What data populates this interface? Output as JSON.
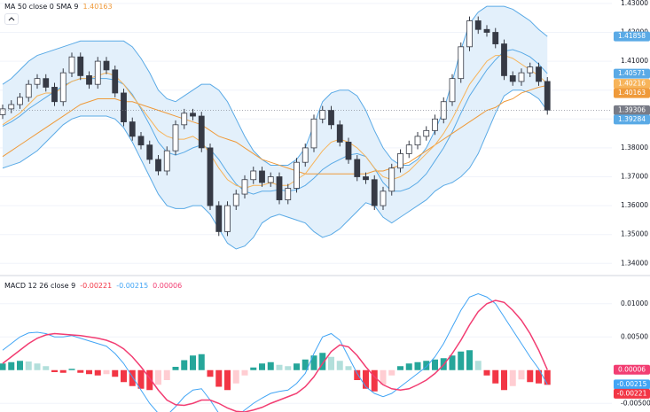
{
  "chart_data": [
    {
      "type": "candlestick",
      "open": [
        1.3915,
        1.3935,
        1.395,
        1.3975,
        1.402,
        1.404,
        1.401,
        1.396,
        1.406,
        1.4115,
        1.405,
        1.402,
        1.41,
        1.407,
        1.399,
        1.389,
        1.384,
        1.381,
        1.376,
        1.372,
        1.379,
        1.388,
        1.392,
        1.391,
        1.38,
        1.36,
        1.351,
        1.36,
        1.364,
        1.369,
        1.372,
        1.368,
        1.37,
        1.362,
        1.366,
        1.375,
        1.38,
        1.39,
        1.393,
        1.388,
        1.382,
        1.376,
        1.37,
        1.369,
        1.36,
        1.365,
        1.373,
        1.378,
        1.381,
        1.384,
        1.386,
        1.39,
        1.396,
        1.404,
        1.415,
        1.424,
        1.421,
        1.42,
        1.416,
        1.405,
        1.403,
        1.406,
        1.408,
        1.403
      ],
      "high": [
        1.395,
        1.3965,
        1.399,
        1.4035,
        1.4055,
        1.4055,
        1.4025,
        1.4075,
        1.413,
        1.413,
        1.4065,
        1.4115,
        1.4115,
        1.4085,
        1.4005,
        1.3905,
        1.3855,
        1.3825,
        1.3775,
        1.3805,
        1.3895,
        1.3935,
        1.3935,
        1.3925,
        1.3815,
        1.3615,
        1.3615,
        1.3655,
        1.3705,
        1.3735,
        1.3735,
        1.3715,
        1.3715,
        1.3675,
        1.3765,
        1.3815,
        1.3915,
        1.3945,
        1.3945,
        1.3895,
        1.3835,
        1.3775,
        1.3715,
        1.3705,
        1.3665,
        1.3745,
        1.3795,
        1.3825,
        1.3855,
        1.3875,
        1.3915,
        1.3975,
        1.4055,
        1.4165,
        1.4255,
        1.4255,
        1.4225,
        1.4215,
        1.4175,
        1.4065,
        1.4075,
        1.4095,
        1.4095,
        1.4045
      ],
      "low": [
        1.39,
        1.392,
        1.3935,
        1.396,
        1.4005,
        1.3995,
        1.3945,
        1.3945,
        1.4045,
        1.4035,
        1.4005,
        1.4005,
        1.4055,
        1.3975,
        1.3875,
        1.3825,
        1.3795,
        1.3745,
        1.3705,
        1.3705,
        1.3775,
        1.3865,
        1.3895,
        1.3785,
        1.3585,
        1.3495,
        1.3495,
        1.3585,
        1.3625,
        1.3675,
        1.3665,
        1.3665,
        1.3605,
        1.3605,
        1.3645,
        1.3735,
        1.3785,
        1.3885,
        1.3865,
        1.3805,
        1.3745,
        1.3685,
        1.3675,
        1.3585,
        1.3585,
        1.3635,
        1.3715,
        1.3765,
        1.3795,
        1.3825,
        1.3845,
        1.3885,
        1.3945,
        1.4025,
        1.4135,
        1.4195,
        1.4185,
        1.4145,
        1.4035,
        1.4015,
        1.4015,
        1.4045,
        1.4015,
        1.3915
      ],
      "close": [
        1.3935,
        1.395,
        1.3975,
        1.402,
        1.404,
        1.401,
        1.396,
        1.406,
        1.4115,
        1.405,
        1.402,
        1.41,
        1.407,
        1.399,
        1.389,
        1.384,
        1.381,
        1.376,
        1.372,
        1.379,
        1.388,
        1.392,
        1.391,
        1.38,
        1.36,
        1.351,
        1.36,
        1.364,
        1.369,
        1.372,
        1.368,
        1.37,
        1.362,
        1.366,
        1.375,
        1.38,
        1.39,
        1.393,
        1.388,
        1.382,
        1.376,
        1.37,
        1.369,
        1.36,
        1.365,
        1.373,
        1.378,
        1.381,
        1.384,
        1.386,
        1.39,
        1.396,
        1.404,
        1.415,
        1.424,
        1.421,
        1.42,
        1.416,
        1.405,
        1.403,
        1.406,
        1.408,
        1.403,
        1.39306
      ],
      "candle_colors": {
        "up": "#ffffff",
        "down": "#363a45",
        "border": "#363a45",
        "last": "#787b86"
      },
      "bands": {
        "color": "#5aaae6",
        "fill": "#e3f0fb",
        "upper": [
          1.402,
          1.404,
          1.407,
          1.41,
          1.412,
          1.413,
          1.414,
          1.415,
          1.416,
          1.417,
          1.417,
          1.417,
          1.417,
          1.417,
          1.417,
          1.415,
          1.411,
          1.406,
          1.4,
          1.397,
          1.396,
          1.398,
          1.4,
          1.402,
          1.402,
          1.4,
          1.396,
          1.39,
          1.384,
          1.379,
          1.376,
          1.374,
          1.374,
          1.374,
          1.376,
          1.38,
          1.388,
          1.396,
          1.399,
          1.4,
          1.4,
          1.398,
          1.393,
          1.386,
          1.38,
          1.376,
          1.374,
          1.374,
          1.376,
          1.38,
          1.386,
          1.393,
          1.403,
          1.414,
          1.423,
          1.427,
          1.429,
          1.429,
          1.429,
          1.428,
          1.426,
          1.424,
          1.421,
          1.41858
        ],
        "basis": [
          1.3875,
          1.389,
          1.391,
          1.3935,
          1.3955,
          1.3975,
          1.3995,
          1.4015,
          1.403,
          1.404,
          1.404,
          1.404,
          1.404,
          1.4035,
          1.402,
          1.3985,
          1.3935,
          1.388,
          1.382,
          1.3785,
          1.3775,
          1.3785,
          1.38,
          1.381,
          1.3795,
          1.376,
          1.3715,
          1.3675,
          1.365,
          1.364,
          1.365,
          1.365,
          1.3655,
          1.365,
          1.3655,
          1.367,
          1.3695,
          1.3725,
          1.3745,
          1.376,
          1.3775,
          1.378,
          1.377,
          1.373,
          1.368,
          1.365,
          1.365,
          1.366,
          1.368,
          1.371,
          1.3755,
          1.38,
          1.3855,
          1.392,
          1.398,
          1.4025,
          1.407,
          1.4105,
          1.4135,
          1.414,
          1.413,
          1.4115,
          1.409,
          1.40571
        ],
        "lower": [
          1.373,
          1.374,
          1.375,
          1.377,
          1.379,
          1.382,
          1.385,
          1.388,
          1.39,
          1.391,
          1.391,
          1.391,
          1.391,
          1.39,
          1.387,
          1.382,
          1.376,
          1.37,
          1.364,
          1.36,
          1.359,
          1.359,
          1.36,
          1.36,
          1.357,
          1.352,
          1.347,
          1.345,
          1.346,
          1.349,
          1.354,
          1.356,
          1.357,
          1.356,
          1.355,
          1.354,
          1.351,
          1.349,
          1.35,
          1.352,
          1.355,
          1.358,
          1.361,
          1.36,
          1.356,
          1.354,
          1.356,
          1.358,
          1.36,
          1.362,
          1.365,
          1.367,
          1.368,
          1.37,
          1.373,
          1.378,
          1.385,
          1.392,
          1.398,
          1.4,
          1.4,
          1.399,
          1.397,
          1.39284
        ]
      },
      "lines": [
        {
          "name": "MA 50 close 0 SMA 9",
          "color": "#ef9a3a",
          "values": [
            1.377,
            1.379,
            1.381,
            1.383,
            1.385,
            1.387,
            1.389,
            1.391,
            1.393,
            1.395,
            1.396,
            1.397,
            1.397,
            1.397,
            1.396,
            1.396,
            1.395,
            1.394,
            1.393,
            1.392,
            1.391,
            1.39,
            1.389,
            1.388,
            1.386,
            1.384,
            1.383,
            1.382,
            1.38,
            1.378,
            1.376,
            1.375,
            1.374,
            1.373,
            1.372,
            1.371,
            1.371,
            1.371,
            1.371,
            1.371,
            1.371,
            1.371,
            1.371,
            1.372,
            1.372,
            1.373,
            1.374,
            1.375,
            1.377,
            1.379,
            1.381,
            1.383,
            1.385,
            1.387,
            1.389,
            1.391,
            1.393,
            1.394,
            1.396,
            1.397,
            1.399,
            1.4,
            1.401,
            1.40163
          ]
        },
        {
          "color": "#f7b45a",
          "values": [
            1.388,
            1.39,
            1.392,
            1.395,
            1.398,
            1.399,
            1.399,
            1.401,
            1.403,
            1.404,
            1.404,
            1.405,
            1.406,
            1.405,
            1.402,
            1.398,
            1.394,
            1.39,
            1.386,
            1.384,
            1.383,
            1.383,
            1.384,
            1.382,
            1.378,
            1.373,
            1.369,
            1.367,
            1.366,
            1.367,
            1.367,
            1.368,
            1.367,
            1.367,
            1.369,
            1.371,
            1.375,
            1.379,
            1.382,
            1.383,
            1.382,
            1.38,
            1.377,
            1.373,
            1.37,
            1.369,
            1.37,
            1.372,
            1.375,
            1.378,
            1.381,
            1.385,
            1.39,
            1.396,
            1.402,
            1.406,
            1.41,
            1.412,
            1.412,
            1.411,
            1.409,
            1.407,
            1.405,
            1.40216
          ]
        }
      ],
      "ylim": [
        1.3361,
        1.4312
      ],
      "yticks": [
        {
          "value": 1.43,
          "label": "1.43000"
        },
        {
          "value": 1.42,
          "label": "1.42000"
        },
        {
          "value": 1.41,
          "label": "1.41000"
        },
        {
          "value": 1.4,
          "label": "1.40000"
        },
        {
          "value": 1.39,
          "label": "1.39000"
        },
        {
          "value": 1.38,
          "label": "1.38000"
        },
        {
          "value": 1.37,
          "label": "1.37000"
        },
        {
          "value": 1.36,
          "label": "1.36000"
        },
        {
          "value": 1.35,
          "label": "1.35000"
        },
        {
          "value": 1.34,
          "label": "1.34000"
        }
      ],
      "grid": true
    },
    {
      "type": "macd",
      "title": "MACD 12 26 close 9",
      "histogram": [
        0.001,
        0.0012,
        0.0014,
        0.0013,
        0.001,
        0.0006,
        -0.0003,
        -0.0004,
        0.0002,
        -0.0004,
        -0.0006,
        -0.0008,
        -0.0006,
        -0.001,
        -0.0018,
        -0.0024,
        -0.0028,
        -0.003,
        -0.0022,
        -0.0015,
        0.0005,
        0.0015,
        0.0022,
        0.0024,
        -0.001,
        -0.0025,
        -0.003,
        -0.002,
        -0.0008,
        0.0004,
        0.001,
        0.0012,
        0.0008,
        0.0006,
        0.001,
        0.0016,
        0.0022,
        0.0026,
        0.002,
        0.0014,
        0.0006,
        -0.0015,
        -0.0028,
        -0.0032,
        -0.0022,
        -0.0008,
        0.0006,
        0.001,
        0.0012,
        0.0014,
        0.0016,
        0.0018,
        0.0022,
        0.0028,
        0.003,
        0.0014,
        -0.0008,
        -0.002,
        -0.003,
        -0.0024,
        -0.0014,
        -0.0018,
        -0.002,
        -0.00221
      ],
      "macd": [
        0.003,
        0.004,
        0.005,
        0.0056,
        0.0057,
        0.0055,
        0.005,
        0.005,
        0.0052,
        0.0048,
        0.0044,
        0.004,
        0.0036,
        0.0025,
        0.001,
        -0.001,
        -0.003,
        -0.005,
        -0.0065,
        -0.0068,
        -0.0055,
        -0.004,
        -0.003,
        -0.0028,
        -0.0045,
        -0.0065,
        -0.0072,
        -0.007,
        -0.006,
        -0.005,
        -0.0042,
        -0.0035,
        -0.0032,
        -0.003,
        -0.002,
        -0.0005,
        0.0025,
        0.005,
        0.0055,
        0.0045,
        0.002,
        -0.0005,
        -0.0025,
        -0.0035,
        -0.004,
        -0.0035,
        -0.0025,
        -0.0015,
        -0.0005,
        0.0005,
        0.002,
        0.004,
        0.0065,
        0.009,
        0.011,
        0.0115,
        0.011,
        0.01,
        0.008,
        0.006,
        0.004,
        0.002,
        0.0002,
        -0.00215
      ],
      "signal": [
        0.001,
        0.002,
        0.003,
        0.004,
        0.0048,
        0.0053,
        0.0055,
        0.0054,
        0.0053,
        0.0052,
        0.005,
        0.0048,
        0.0045,
        0.004,
        0.0032,
        0.002,
        0.0005,
        -0.0012,
        -0.003,
        -0.0045,
        -0.0052,
        -0.0053,
        -0.005,
        -0.0045,
        -0.0045,
        -0.005,
        -0.0057,
        -0.0062,
        -0.0063,
        -0.006,
        -0.0056,
        -0.005,
        -0.0045,
        -0.004,
        -0.0035,
        -0.0025,
        -0.001,
        0.001,
        0.0028,
        0.0038,
        0.0035,
        0.0022,
        0.0005,
        -0.001,
        -0.0022,
        -0.0028,
        -0.003,
        -0.0028,
        -0.0022,
        -0.0015,
        -0.0005,
        0.0008,
        0.0025,
        0.0045,
        0.0068,
        0.0088,
        0.01,
        0.0105,
        0.0102,
        0.009,
        0.0075,
        0.0055,
        0.003,
        6e-05
      ],
      "colors": {
        "macd": "#42a5f5",
        "signal": "#f23d72",
        "hist_up": "#26a69a",
        "hist_up_fading": "#b2dfdb",
        "hist_down": "#f23645",
        "hist_down_fading": "#ffcdd2",
        "hist_label": "#f23645"
      },
      "ylim": [
        -0.0063,
        0.0141
      ],
      "yticks": [
        {
          "value": 0.01,
          "label": "0.01000"
        },
        {
          "value": 0.005,
          "label": "0.00500"
        },
        {
          "value": -0.005,
          "label": "-0.00500"
        }
      ],
      "grid": true
    }
  ]
}
